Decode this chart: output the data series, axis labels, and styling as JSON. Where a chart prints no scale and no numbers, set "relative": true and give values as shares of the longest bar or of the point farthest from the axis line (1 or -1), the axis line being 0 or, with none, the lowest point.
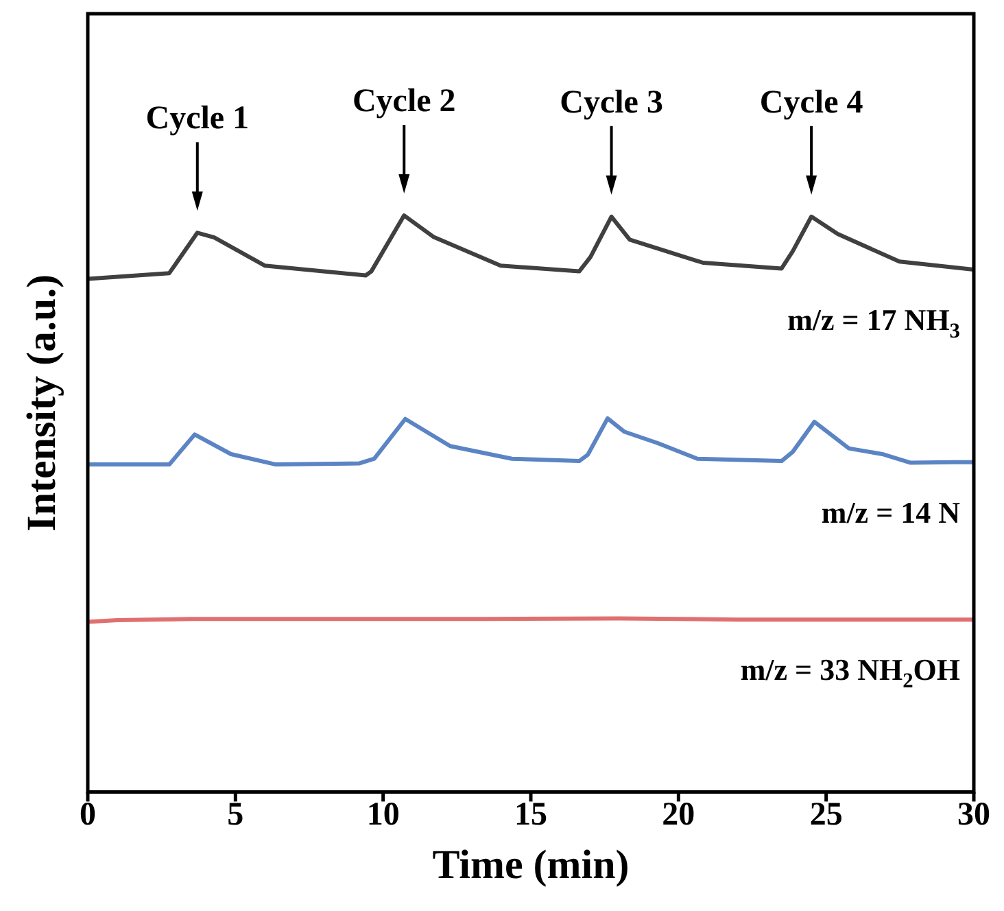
{
  "chart_data": {
    "type": "line",
    "xlabel": "Time (min)",
    "ylabel": "Intensity (a.u.)",
    "relative": true,
    "grid": false,
    "legend": false,
    "marker": "none",
    "line_style": "solid",
    "xlim": [
      0,
      30
    ],
    "xticks": [
      0,
      5,
      10,
      15,
      20,
      25,
      30
    ],
    "series": [
      {
        "name": "m/z = 17 NH$_{3}$",
        "color": "#404040",
        "x": [
          0,
          2.76,
          3.71,
          4.28,
          5.99,
          9.41,
          9.6,
          10.71,
          11.7,
          13.98,
          16.64,
          17.02,
          17.73,
          18.35,
          20.83,
          23.49,
          23.87,
          24.5,
          25.39,
          27.48,
          30
        ],
        "values": [
          0.89,
          0.9,
          0.97,
          0.962,
          0.913,
          0.896,
          0.903,
          1.0,
          0.963,
          0.913,
          0.903,
          0.928,
          0.998,
          0.958,
          0.918,
          0.908,
          0.938,
          0.998,
          0.968,
          0.92,
          0.906
        ]
      },
      {
        "name": "m/z = 14 N",
        "color": "#5b84c4",
        "x": [
          0,
          2.76,
          3.62,
          4.85,
          6.37,
          9.2,
          9.7,
          10.75,
          12.27,
          14.36,
          16.64,
          16.93,
          17.6,
          18.16,
          19.3,
          20.64,
          23.49,
          23.87,
          24.6,
          25.77,
          26.9,
          27.86,
          29.29,
          30
        ],
        "values": [
          0.568,
          0.568,
          0.62,
          0.586,
          0.568,
          0.57,
          0.578,
          0.647,
          0.6,
          0.578,
          0.574,
          0.585,
          0.648,
          0.625,
          0.605,
          0.578,
          0.574,
          0.59,
          0.642,
          0.596,
          0.586,
          0.571,
          0.572,
          0.572
        ]
      },
      {
        "name": "m/z = 33 NH$_{2}$OH",
        "color": "#e07070",
        "x": [
          0,
          1,
          3.5,
          13.5,
          18,
          22,
          30
        ],
        "values": [
          0.295,
          0.298,
          0.3,
          0.3,
          0.301,
          0.299,
          0.299
        ]
      }
    ],
    "annotations": [
      {
        "text": "Cycle 1",
        "x": 3.71,
        "y": 0.97
      },
      {
        "text": "Cycle 2",
        "x": 10.71,
        "y": 1.0
      },
      {
        "text": "Cycle 3",
        "x": 17.73,
        "y": 0.998
      },
      {
        "text": "Cycle 4",
        "x": 24.5,
        "y": 0.998
      }
    ]
  }
}
